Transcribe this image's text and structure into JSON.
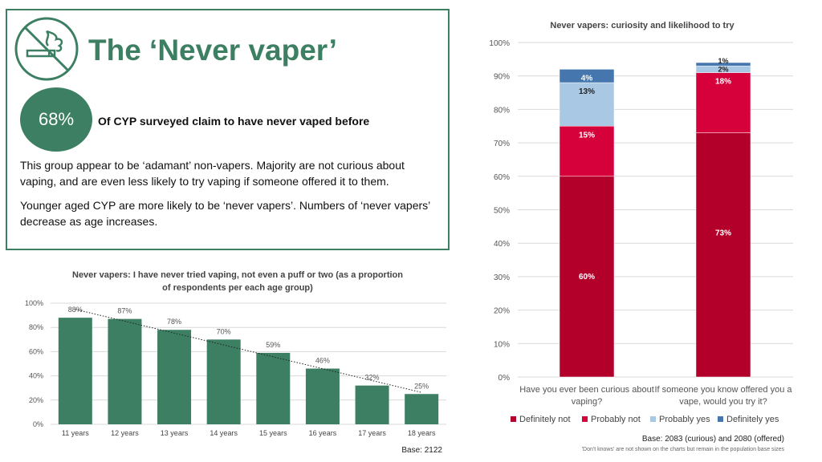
{
  "header": {
    "title": "The ‘Never vaper’",
    "logo_icon": "no-vaping-icon"
  },
  "stat": {
    "value": "68%",
    "label": "Of CYP surveyed claim to have never vaped before"
  },
  "paragraphs": [
    "This group appear to be ‘adamant’ non-vapers. Majority are not curious about vaping, and are even less likely to try vaping if someone offered it to them.",
    "Younger aged CYP are more likely to be ‘never vapers’. Numbers of ‘never vapers’ decrease as age increases."
  ],
  "colors": {
    "brand_green": "#3d7f62",
    "definitely_not": "#b3002a",
    "probably_not": "#d6003a",
    "probably_yes": "#a9c8e3",
    "definitely_yes": "#4577ae"
  },
  "chart_data": [
    {
      "type": "bar",
      "title_lines": [
        "Never vapers: I have never tried vaping, not even a puff or two (as a proportion",
        "of respondents per each age group)"
      ],
      "categories": [
        "11 years",
        "12 years",
        "13 years",
        "14 years",
        "15 years",
        "16 years",
        "17 years",
        "18 years"
      ],
      "values": [
        88,
        87,
        78,
        70,
        59,
        46,
        32,
        25
      ],
      "value_labels": [
        "88%",
        "87%",
        "78%",
        "70%",
        "59%",
        "46%",
        "32%",
        "25%"
      ],
      "ylim": [
        0,
        100
      ],
      "yticks": [
        0,
        20,
        40,
        60,
        80,
        100
      ],
      "ytick_labels": [
        "0%",
        "20%",
        "40%",
        "60%",
        "80%",
        "100%"
      ],
      "trendline": "linear, dotted",
      "base_note": "Base: 2122"
    },
    {
      "type": "stacked_bar",
      "title": "Never vapers: curiosity and likelihood to try",
      "categories": [
        [
          "Have you ever been curious about",
          "vaping?"
        ],
        [
          "If someone you know offered you a",
          "vape, would you try it?"
        ]
      ],
      "series": [
        {
          "name": "Definitely not",
          "values": [
            60,
            73
          ],
          "labels": [
            "60%",
            "73%"
          ]
        },
        {
          "name": "Probably not",
          "values": [
            15,
            18
          ],
          "labels": [
            "15%",
            "18%"
          ]
        },
        {
          "name": "Probably yes",
          "values": [
            13,
            2
          ],
          "labels": [
            "13%",
            "2%"
          ]
        },
        {
          "name": "Definitely yes",
          "values": [
            4,
            1
          ],
          "labels": [
            "4%",
            "1%"
          ]
        }
      ],
      "ylim": [
        0,
        100
      ],
      "yticks": [
        0,
        10,
        20,
        30,
        40,
        50,
        60,
        70,
        80,
        90,
        100
      ],
      "ytick_labels": [
        "0%",
        "10%",
        "20%",
        "30%",
        "40%",
        "50%",
        "60%",
        "70%",
        "80%",
        "90%",
        "100%"
      ],
      "legend_position": "bottom",
      "base_note": "Base: 2083 (curious) and 2080 (offered)",
      "footnote": "'Don't knows' are not shown on the charts but remain in the population base sizes"
    }
  ]
}
